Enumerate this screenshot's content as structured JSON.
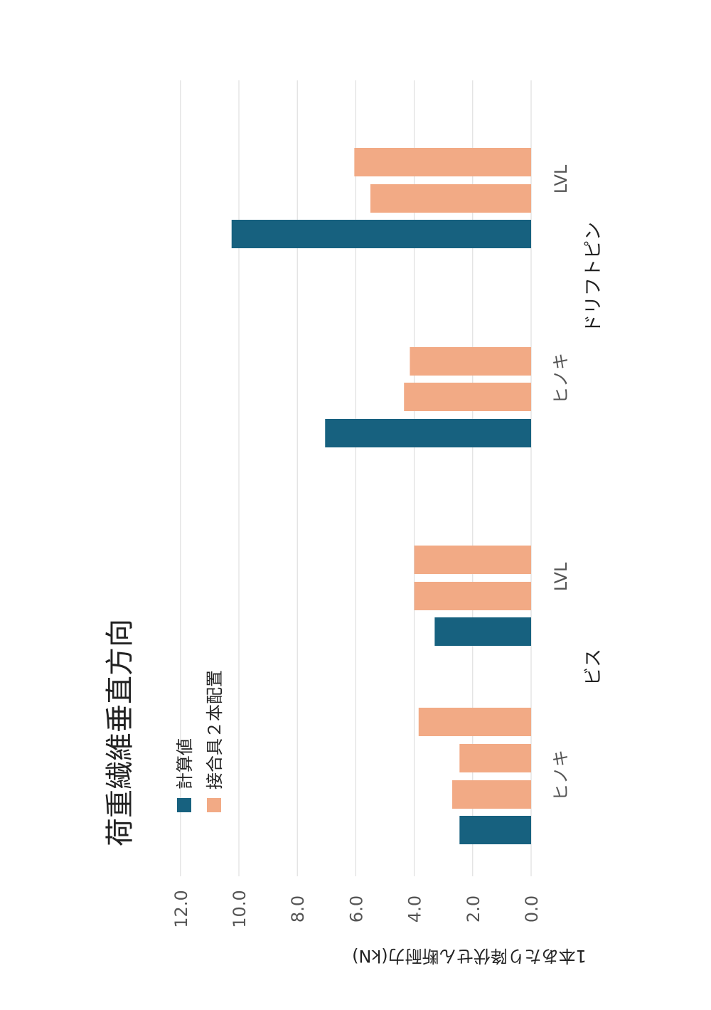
{
  "chart_data": {
    "type": "bar",
    "title": "荷重繊維垂直方向",
    "ylabel": "1本あたり降伏せん断耐力(kN)",
    "ylim": [
      0,
      12
    ],
    "yticks": [
      "0.0",
      "2.0",
      "4.0",
      "6.0",
      "8.0",
      "10.0",
      "12.0"
    ],
    "grid": true,
    "legend_position": "top",
    "groups": [
      {
        "label": "ビス",
        "categories": [
          {
            "label": "ヒノキ",
            "bars": [
              {
                "series": 0,
                "value": 2.45
              },
              {
                "series": 1,
                "value": 2.7
              },
              {
                "series": 1,
                "value": 2.45
              },
              {
                "series": 1,
                "value": 3.85
              }
            ]
          },
          {
            "label": "LVL",
            "bars": [
              {
                "series": 0,
                "value": 3.3
              },
              {
                "series": 1,
                "value": 4.0
              },
              {
                "series": 1,
                "value": 4.0
              }
            ]
          }
        ]
      },
      {
        "label": "ドリフトピン",
        "categories": [
          {
            "label": "ヒノキ",
            "bars": [
              {
                "series": 0,
                "value": 7.05
              },
              {
                "series": 1,
                "value": 4.35
              },
              {
                "series": 1,
                "value": 4.15
              }
            ]
          },
          {
            "label": "LVL",
            "bars": [
              {
                "series": 0,
                "value": 10.25
              },
              {
                "series": 1,
                "value": 5.5
              },
              {
                "series": 1,
                "value": 6.05
              }
            ]
          }
        ]
      }
    ],
    "series": [
      {
        "name": "計算値",
        "color": "#17617f"
      },
      {
        "name": "接合具２本配置",
        "color": "#f2aa85"
      }
    ]
  }
}
